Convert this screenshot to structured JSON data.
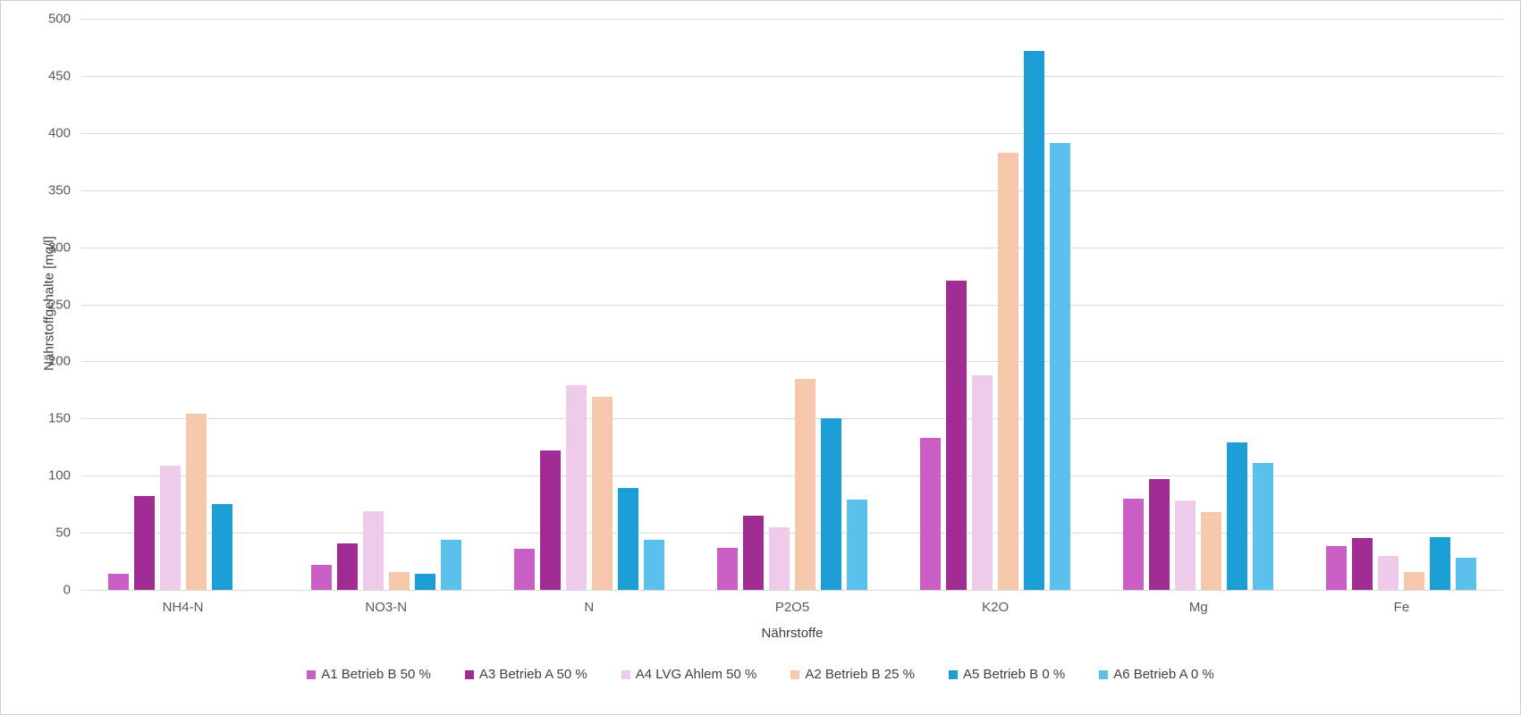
{
  "chart_data": {
    "type": "bar",
    "title": "",
    "xlabel": "Nährstoffe",
    "ylabel": "Nährstoffgehalte [mg/l]",
    "ylim": [
      0,
      500
    ],
    "ytick_step": 50,
    "grid": "horizontal",
    "legend_position": "bottom",
    "categories": [
      "NH4-N",
      "NO3-N",
      "N",
      "P2O5",
      "K2O",
      "Mg",
      "Fe"
    ],
    "series": [
      {
        "name": "A1 Betrieb B 50 %",
        "color": "#CB5EC4",
        "values": [
          14,
          22,
          36,
          37,
          133,
          80,
          38
        ]
      },
      {
        "name": "A3 Betrieb A 50 %",
        "color": "#A02B93",
        "values": [
          82,
          41,
          122,
          65,
          271,
          97,
          45
        ]
      },
      {
        "name": "A4 LVG Ahlem 50 %",
        "color": "#EFCBEB",
        "values": [
          109,
          69,
          179,
          55,
          188,
          78,
          30
        ]
      },
      {
        "name": "A2 Betrieb B 25 %",
        "color": "#F5C7AB",
        "values": [
          154,
          16,
          169,
          185,
          383,
          68,
          16
        ]
      },
      {
        "name": "A5 Betrieb B 0 %",
        "color": "#1B9ED6",
        "values": [
          75,
          14,
          89,
          150,
          472,
          129,
          46
        ]
      },
      {
        "name": "A6 Betrieb A 0 %",
        "color": "#5BC1EC",
        "values": [
          0,
          44,
          44,
          79,
          391,
          111,
          28
        ]
      }
    ]
  },
  "colors": {
    "gridline": "#D9D9D9",
    "axis_text": "#595959",
    "title_text": "#404040",
    "frame_border": "#CFCFCF",
    "background": "#FFFFFF"
  }
}
